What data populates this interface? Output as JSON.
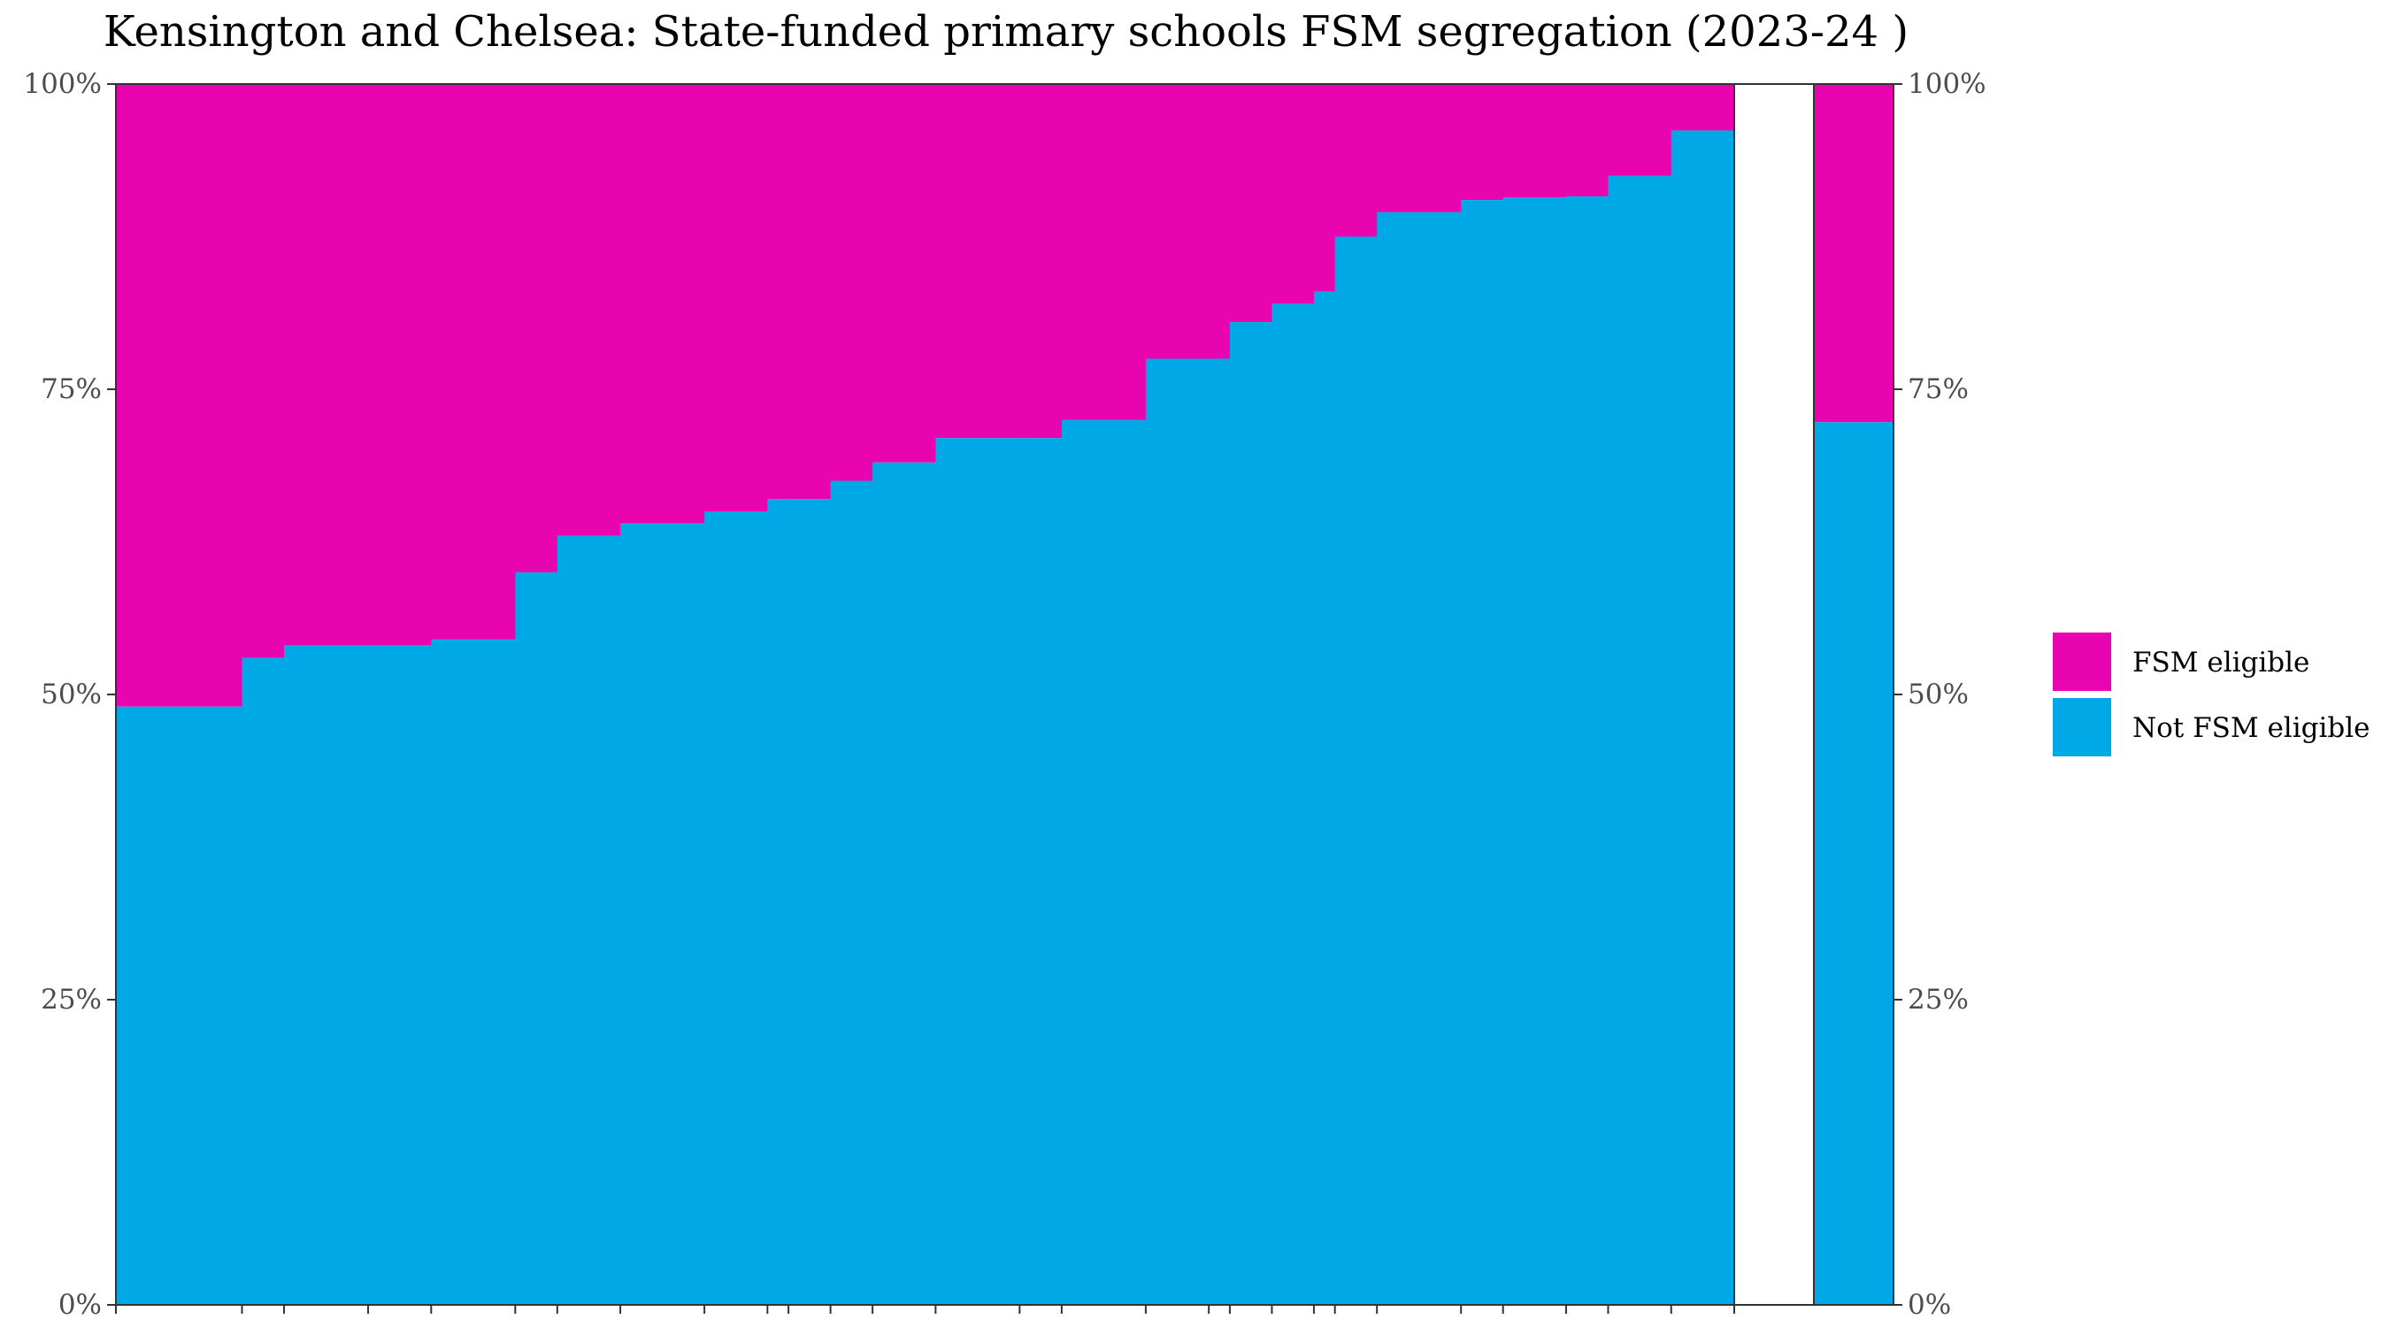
{
  "chart_data": {
    "type": "bar",
    "variant": "stacked-100-variable-width",
    "title": "Kensington and Chelsea: State-funded primary schools FSM segregation (2023-24 )",
    "xlabel": "",
    "ylabel": "",
    "ylim": [
      0,
      1
    ],
    "y_ticks": [
      {
        "value": 0.0,
        "label": "0%"
      },
      {
        "value": 0.25,
        "label": "25%"
      },
      {
        "value": 0.5,
        "label": "50%"
      },
      {
        "value": 0.75,
        "label": "75%"
      },
      {
        "value": 1.0,
        "label": "100%"
      }
    ],
    "grid": false,
    "legend_position": "right",
    "legend": [
      {
        "key": "fsm",
        "label": "FSM eligible",
        "color": "#E805B0"
      },
      {
        "key": "not_fsm",
        "label": "Not FSM eligible",
        "color": "#00A8E6"
      }
    ],
    "series": [
      {
        "name": "Not FSM eligible",
        "key": "not_fsm",
        "color": "#00A8E6"
      },
      {
        "name": "FSM eligible",
        "key": "fsm",
        "color": "#E805B0"
      }
    ],
    "schools": {
      "widths": [
        6,
        2,
        4,
        3,
        4,
        2,
        3,
        4,
        3,
        1,
        2,
        2,
        3,
        4,
        2,
        4,
        3,
        1,
        2,
        2,
        1,
        2,
        4,
        2,
        3,
        2,
        3,
        3
      ],
      "not_fsm_share": [
        0.49,
        0.53,
        0.54,
        0.54,
        0.545,
        0.6,
        0.63,
        0.64,
        0.65,
        0.66,
        0.66,
        0.675,
        0.69,
        0.71,
        0.71,
        0.725,
        0.775,
        0.775,
        0.805,
        0.82,
        0.83,
        0.875,
        0.895,
        0.905,
        0.907,
        0.908,
        0.925,
        0.962
      ]
    },
    "total": {
      "not_fsm_share": 0.723
    }
  }
}
